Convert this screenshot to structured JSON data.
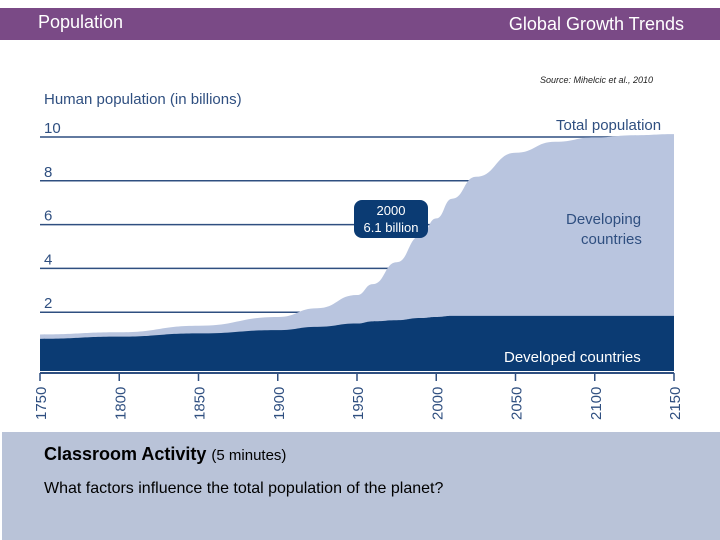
{
  "header": {
    "left_title": "Population",
    "right_title": "Global Growth Trends"
  },
  "source": "Source: Mihelcic et al., 2010",
  "activity": {
    "title": "Classroom Activity",
    "duration": "(5 minutes)",
    "question": "What factors influence the total population of the planet?"
  },
  "colors": {
    "header": "#7a4a86",
    "developing": "#b9c5df",
    "developed": "#0b3b73",
    "gridline": "#2f4f80",
    "activity_bg": "#b9c3d8"
  },
  "chart_data": {
    "type": "area",
    "ylabel": "Human population (in billions)",
    "xlim": [
      1750,
      2150
    ],
    "ylim": [
      0,
      10
    ],
    "yticks": [
      0,
      2,
      4,
      6,
      8,
      10
    ],
    "xticks": [
      1750,
      1800,
      1850,
      1900,
      1950,
      2000,
      2050,
      2100,
      2150
    ],
    "x": [
      1750,
      1800,
      1850,
      1900,
      1925,
      1950,
      1960,
      1975,
      1990,
      2000,
      2010,
      2025,
      2050,
      2075,
      2100,
      2125,
      2150
    ],
    "series": [
      {
        "name": "Developed countries",
        "values": [
          0.6,
          0.7,
          0.85,
          1.0,
          1.15,
          1.3,
          1.4,
          1.45,
          1.55,
          1.6,
          1.65,
          1.65,
          1.65,
          1.65,
          1.65,
          1.65,
          1.65
        ]
      },
      {
        "name": "Total population",
        "values": [
          0.8,
          0.9,
          1.2,
          1.6,
          2.0,
          2.6,
          3.1,
          4.1,
          5.3,
          6.1,
          7.0,
          8.0,
          9.1,
          9.6,
          9.8,
          9.9,
          9.95
        ]
      }
    ],
    "labels": {
      "total": "Total population",
      "developing": [
        "Developing",
        "countries"
      ],
      "developed": "Developed countries"
    },
    "callout": {
      "x": 2000,
      "y": 6.1,
      "lines": [
        "2000",
        "6.1 billion"
      ]
    }
  }
}
